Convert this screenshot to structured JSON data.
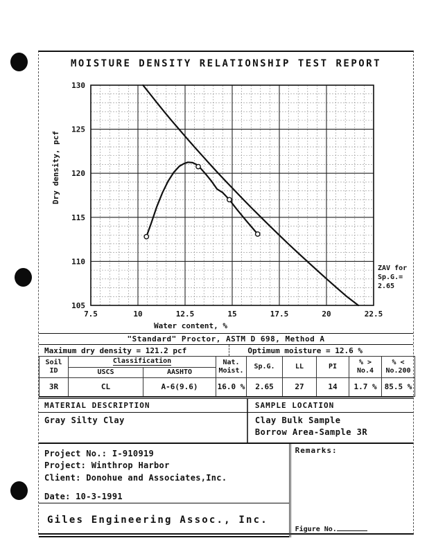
{
  "report": {
    "title": "MOISTURE DENSITY RELATIONSHIP TEST REPORT"
  },
  "chart_data": {
    "type": "line",
    "title": "",
    "xlabel": "Water content, %",
    "ylabel": "Dry density, pcf",
    "xlim": [
      7.5,
      22.5
    ],
    "ylim": [
      105,
      130
    ],
    "xticks": [
      7.5,
      10,
      12.5,
      15,
      17.5,
      20,
      22.5
    ],
    "yticks": [
      105,
      110,
      115,
      120,
      125,
      130
    ],
    "x_minor_step": 0.5,
    "y_minor_step": 1,
    "grid": true,
    "legend": false,
    "annotation": [
      "ZAV for",
      "Sp.G.=",
      "2.65"
    ],
    "series": [
      {
        "name": "compaction-curve",
        "x": [
          10.45,
          10.7,
          11.0,
          11.3,
          11.6,
          11.9,
          12.2,
          12.45,
          12.65,
          12.9,
          13.1,
          13.35,
          13.6,
          13.9,
          14.2,
          14.5,
          14.85,
          15.25,
          15.75,
          16.35
        ],
        "y": [
          112.8,
          114.3,
          116.2,
          117.8,
          119.1,
          120.1,
          120.8,
          121.1,
          121.25,
          121.2,
          121.0,
          120.5,
          119.9,
          119.1,
          118.2,
          117.8,
          117.0,
          115.9,
          114.6,
          113.1
        ]
      },
      {
        "name": "zav-curve",
        "x": [
          10.27,
          10.64,
          11.01,
          11.39,
          11.78,
          12.18,
          12.58,
          12.99,
          13.41,
          13.83,
          14.26,
          14.7,
          15.15,
          15.6,
          16.06,
          16.53,
          17.0,
          17.48,
          17.97,
          18.47,
          18.98,
          19.49,
          20.01,
          20.54,
          21.08,
          21.69
        ],
        "y": [
          130,
          129,
          128,
          127,
          126,
          125,
          124,
          123,
          122,
          121,
          120,
          119,
          118,
          117,
          116,
          115,
          114,
          113,
          112,
          111,
          110,
          109,
          108,
          107,
          106,
          105
        ]
      }
    ],
    "data_points": [
      [
        10.45,
        112.8
      ],
      [
        13.2,
        120.75
      ],
      [
        14.85,
        117.0
      ],
      [
        16.35,
        113.1
      ]
    ],
    "key_values": {
      "maximum_dry_density_pcf": 121.2,
      "optimum_moisture_pct": 12.6,
      "specific_gravity": 2.65
    }
  },
  "proctor": {
    "standard_line": "\"Standard\" Proctor,  ASTM D 698, Method A",
    "max_density": "Maximum dry density = 121.2 pcf",
    "optimum_moisture": "Optimum moisture = 12.6 %"
  },
  "soil_table": {
    "headers": {
      "soil": [
        "Soil",
        "ID"
      ],
      "classification": "Classification",
      "uscs": "USCS",
      "aashto": "AASHTO",
      "nat_moist": [
        "Nat.",
        "Moist."
      ],
      "sp_g": "Sp.G.",
      "ll": "LL",
      "pi": "PI",
      "gt_no4": [
        "% >",
        "No.4"
      ],
      "lt_no200": [
        "% <",
        "No.200"
      ]
    },
    "row": {
      "soil_id": "3R",
      "uscs": "CL",
      "aashto": "A-6(9.6)",
      "nat_moist": "16.0 %",
      "sp_g": "2.65",
      "ll": "27",
      "pi": "14",
      "gt_no4": "1.7 %",
      "lt_no200": "85.5 %"
    }
  },
  "material": {
    "header": "MATERIAL DESCRIPTION",
    "description": "Gray Silty Clay"
  },
  "sample": {
    "header": "SAMPLE LOCATION",
    "lines": [
      "Clay Bulk Sample",
      "Borrow Area-Sample 3R"
    ]
  },
  "project": {
    "project_no": "Project No.: I-910919",
    "project": "Project: Winthrop Harbor",
    "client": "Client: Donohue and Associates,Inc.",
    "date": "Date: 10-3-1991"
  },
  "remarks": {
    "label": "Remarks:"
  },
  "footer": {
    "company": "Giles Engineering Assoc., Inc.",
    "figure_label": "Figure No."
  }
}
